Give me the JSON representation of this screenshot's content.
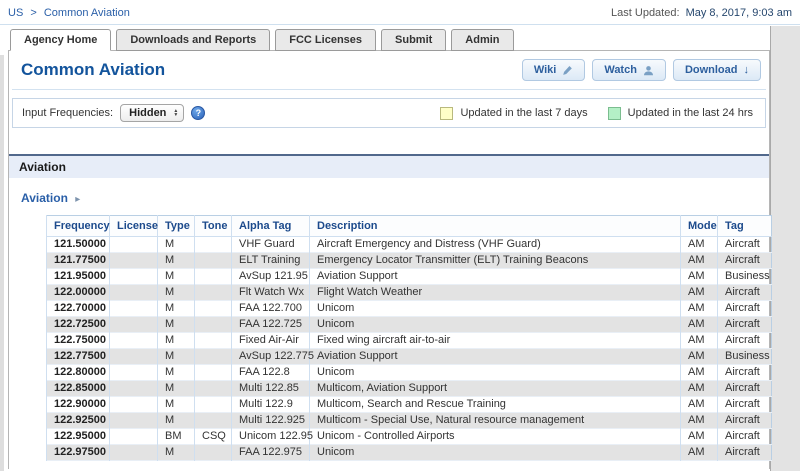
{
  "header": {
    "breadcrumb": {
      "root": "US",
      "separator": ">",
      "current": "Common Aviation"
    },
    "last_updated_label": "Last Updated:",
    "last_updated_value": "May 8, 2017, 9:03 am"
  },
  "tabs": [
    {
      "label": "Agency Home",
      "active": true
    },
    {
      "label": "Downloads and Reports",
      "active": false
    },
    {
      "label": "FCC Licenses",
      "active": false
    },
    {
      "label": "Submit",
      "active": false
    },
    {
      "label": "Admin",
      "active": false
    }
  ],
  "page": {
    "title": "Common Aviation",
    "actions": [
      {
        "label": "Wiki",
        "icon": "pencil-icon"
      },
      {
        "label": "Watch",
        "icon": "person-icon"
      },
      {
        "label": "Download",
        "icon": "download-arrow-icon"
      }
    ]
  },
  "controls": {
    "input_frequencies_label": "Input Frequencies:",
    "select_value": "Hidden",
    "help_symbol": "?",
    "legend": [
      {
        "label": "Updated in the last 7 days",
        "swatch_color": "#ffffc8",
        "swatch_border": "#b9b97e"
      },
      {
        "label": "Updated in the last 24 hrs",
        "swatch_color": "#b4f0c6",
        "swatch_border": "#7bbd8f"
      }
    ]
  },
  "section": {
    "title": "Aviation",
    "subcategory_link": "Aviation",
    "arrow": "▸"
  },
  "freq_table": {
    "columns": [
      "Frequency",
      "License",
      "Type",
      "Tone",
      "Alpha Tag",
      "Description",
      "Mode",
      "Tag"
    ],
    "rows": [
      [
        "121.50000",
        "",
        "M",
        "",
        "VHF Guard",
        "Aircraft Emergency and Distress (VHF Guard)",
        "AM",
        "Aircraft"
      ],
      [
        "121.77500",
        "",
        "M",
        "",
        "ELT Training",
        "Emergency Locator Transmitter (ELT) Training Beacons",
        "AM",
        "Aircraft"
      ],
      [
        "121.95000",
        "",
        "M",
        "",
        "AvSup 121.95",
        "Aviation Support",
        "AM",
        "Business"
      ],
      [
        "122.00000",
        "",
        "M",
        "",
        "Flt Watch Wx",
        "Flight Watch Weather",
        "AM",
        "Aircraft"
      ],
      [
        "122.70000",
        "",
        "M",
        "",
        "FAA 122.700",
        "Unicom",
        "AM",
        "Aircraft"
      ],
      [
        "122.72500",
        "",
        "M",
        "",
        "FAA 122.725",
        "Unicom",
        "AM",
        "Aircraft"
      ],
      [
        "122.75000",
        "",
        "M",
        "",
        "Fixed Air-Air",
        "Fixed wing aircraft air-to-air",
        "AM",
        "Aircraft"
      ],
      [
        "122.77500",
        "",
        "M",
        "",
        "AvSup 122.775",
        "Aviation Support",
        "AM",
        "Business"
      ],
      [
        "122.80000",
        "",
        "M",
        "",
        "FAA 122.8",
        "Unicom",
        "AM",
        "Aircraft"
      ],
      [
        "122.85000",
        "",
        "M",
        "",
        "Multi 122.85",
        "Multicom, Aviation Support",
        "AM",
        "Aircraft"
      ],
      [
        "122.90000",
        "",
        "M",
        "",
        "Multi 122.9",
        "Multicom, Search and Rescue Training",
        "AM",
        "Aircraft"
      ],
      [
        "122.92500",
        "",
        "M",
        "",
        "Multi 122.925",
        "Multicom - Special Use, Natural resource management",
        "AM",
        "Aircraft"
      ],
      [
        "122.95000",
        "",
        "BM",
        "CSQ",
        "Unicom 122.95",
        "Unicom - Controlled Airports",
        "AM",
        "Aircraft"
      ],
      [
        "122.97500",
        "",
        "M",
        "",
        "FAA 122.975",
        "Unicom",
        "AM",
        "Aircraft"
      ]
    ]
  },
  "colors": {
    "link_blue": "#2a5fa8",
    "title_blue": "#13549c",
    "table_header_blue": "#1c4a8c",
    "row_alt_gray": "#e3e3e3",
    "updated_7days_yellow": "#ffffc8",
    "updated_24hrs_green": "#b4f0c6",
    "section_bar_bg": "#e7edf8",
    "section_bar_border": "#51688c"
  }
}
